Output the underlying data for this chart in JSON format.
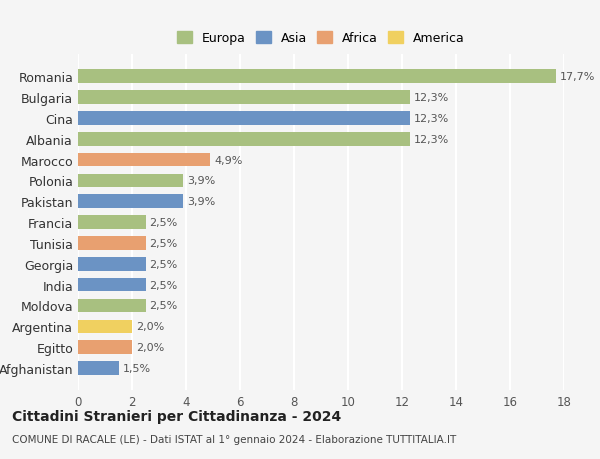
{
  "countries": [
    "Romania",
    "Bulgaria",
    "Cina",
    "Albania",
    "Marocco",
    "Polonia",
    "Pakistan",
    "Francia",
    "Tunisia",
    "Georgia",
    "India",
    "Moldova",
    "Argentina",
    "Egitto",
    "Afghanistan"
  ],
  "values": [
    17.7,
    12.3,
    12.3,
    12.3,
    4.9,
    3.9,
    3.9,
    2.5,
    2.5,
    2.5,
    2.5,
    2.5,
    2.0,
    2.0,
    1.5
  ],
  "labels": [
    "17,7%",
    "12,3%",
    "12,3%",
    "12,3%",
    "4,9%",
    "3,9%",
    "3,9%",
    "2,5%",
    "2,5%",
    "2,5%",
    "2,5%",
    "2,5%",
    "2,0%",
    "2,0%",
    "1,5%"
  ],
  "continents": [
    "Europa",
    "Europa",
    "Asia",
    "Europa",
    "Africa",
    "Europa",
    "Asia",
    "Europa",
    "Africa",
    "Asia",
    "Asia",
    "Europa",
    "America",
    "Africa",
    "Asia"
  ],
  "continent_colors": {
    "Europa": "#a8c080",
    "Asia": "#6b93c4",
    "Africa": "#e8a070",
    "America": "#f0d060"
  },
  "legend_order": [
    "Europa",
    "Asia",
    "Africa",
    "America"
  ],
  "title": "Cittadini Stranieri per Cittadinanza - 2024",
  "subtitle": "COMUNE DI RACALE (LE) - Dati ISTAT al 1° gennaio 2024 - Elaborazione TUTTITALIA.IT",
  "xlim": [
    0,
    18
  ],
  "xticks": [
    0,
    2,
    4,
    6,
    8,
    10,
    12,
    14,
    16,
    18
  ],
  "background_color": "#f5f5f5",
  "grid_color": "#ffffff",
  "bar_height": 0.65
}
